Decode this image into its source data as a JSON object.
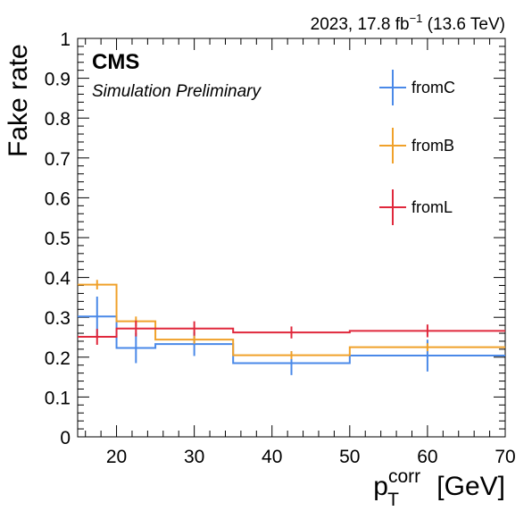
{
  "header": {
    "lumi_text": "2023, 17.8 fb",
    "lumi_sup": "−1",
    "energy_text": " (13.6 TeV)",
    "experiment": "CMS",
    "status": "Simulation Preliminary"
  },
  "chart_data": {
    "type": "histogram",
    "xlabel_main": "p",
    "xlabel_sub": "T",
    "xlabel_sup": "corr",
    "xlabel_unit": " [GeV]",
    "ylabel": "Fake rate",
    "xlim": [
      15,
      70
    ],
    "ylim": [
      0,
      1
    ],
    "xticks": [
      20,
      30,
      40,
      50,
      60,
      70
    ],
    "xtick_labels": [
      "20",
      "30",
      "40",
      "50",
      "60",
      "70"
    ],
    "yticks": [
      0,
      0.1,
      0.2,
      0.3,
      0.4,
      0.5,
      0.6,
      0.7,
      0.8,
      0.9,
      1
    ],
    "ytick_labels": [
      "0",
      "0.1",
      "0.2",
      "0.3",
      "0.4",
      "0.5",
      "0.6",
      "0.7",
      "0.8",
      "0.9",
      "1"
    ],
    "bin_edges": [
      15,
      20,
      25,
      35,
      50,
      70
    ],
    "legend_position": "top-right",
    "series": [
      {
        "name": "fromC",
        "color": "#4a89e8",
        "bins": [
          {
            "lo": 15,
            "hi": 20,
            "center": 17.5,
            "y": 0.302,
            "err": 0.05
          },
          {
            "lo": 20,
            "hi": 25,
            "center": 22.5,
            "y": 0.223,
            "err": 0.038
          },
          {
            "lo": 25,
            "hi": 35,
            "center": 30.0,
            "y": 0.233,
            "err": 0.03
          },
          {
            "lo": 35,
            "hi": 50,
            "center": 42.5,
            "y": 0.185,
            "err": 0.03
          },
          {
            "lo": 50,
            "hi": 70,
            "center": 60.0,
            "y": 0.204,
            "err": 0.04
          }
        ]
      },
      {
        "name": "fromB",
        "color": "#f0a12a",
        "bins": [
          {
            "lo": 15,
            "hi": 20,
            "center": 17.5,
            "y": 0.382,
            "err": 0.012
          },
          {
            "lo": 20,
            "hi": 25,
            "center": 22.5,
            "y": 0.29,
            "err": 0.012
          },
          {
            "lo": 25,
            "hi": 35,
            "center": 30.0,
            "y": 0.244,
            "err": 0.01
          },
          {
            "lo": 35,
            "hi": 50,
            "center": 42.5,
            "y": 0.205,
            "err": 0.01
          },
          {
            "lo": 50,
            "hi": 70,
            "center": 60.0,
            "y": 0.225,
            "err": 0.01
          }
        ]
      },
      {
        "name": "fromL",
        "color": "#e0283c",
        "bins": [
          {
            "lo": 15,
            "hi": 20,
            "center": 17.5,
            "y": 0.251,
            "err": 0.02
          },
          {
            "lo": 20,
            "hi": 25,
            "center": 22.5,
            "y": 0.272,
            "err": 0.02
          },
          {
            "lo": 25,
            "hi": 35,
            "center": 30.0,
            "y": 0.272,
            "err": 0.018
          },
          {
            "lo": 35,
            "hi": 50,
            "center": 42.5,
            "y": 0.262,
            "err": 0.015
          },
          {
            "lo": 50,
            "hi": 70,
            "center": 60.0,
            "y": 0.266,
            "err": 0.016
          }
        ]
      }
    ]
  }
}
